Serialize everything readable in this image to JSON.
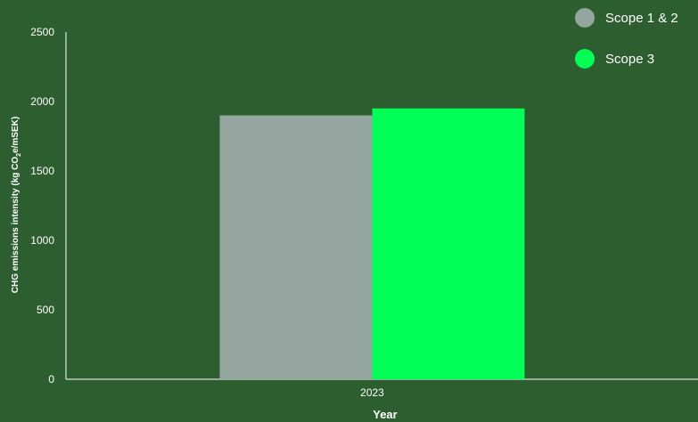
{
  "chart_data": {
    "type": "bar",
    "categories": [
      "2023"
    ],
    "series": [
      {
        "name": "Scope 1 & 2",
        "values": [
          1900
        ],
        "color": "#95a5a0"
      },
      {
        "name": "Scope 3",
        "values": [
          1950
        ],
        "color": "#00ff55"
      }
    ],
    "title": "",
    "xlabel": "Year",
    "ylabel": {
      "prefix": "CHG emissions intensity (kg CO",
      "subscript": "2",
      "suffix": "e/mSEK)"
    },
    "ylim": [
      0,
      2500
    ],
    "yticks": [
      "0",
      "500",
      "1000",
      "1500",
      "2000",
      "2500"
    ],
    "grid": false,
    "legend_position": "top-right"
  }
}
